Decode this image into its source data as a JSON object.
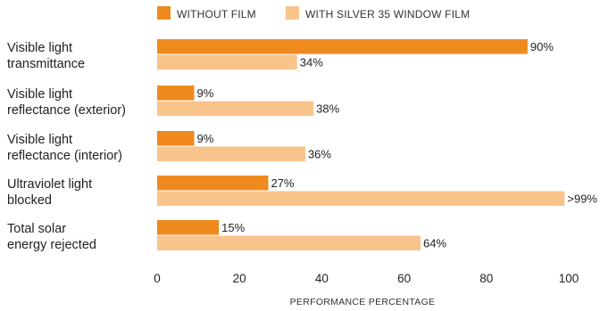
{
  "chart_data": {
    "type": "bar",
    "orientation": "horizontal",
    "title": "",
    "xlabel": "PERFORMANCE PERCENTAGE",
    "ylabel": "",
    "xlim": [
      0,
      100
    ],
    "ticks": [
      0,
      20,
      40,
      60,
      80,
      100
    ],
    "categories": [
      [
        "Visible light",
        "transmittance"
      ],
      [
        "Visible light",
        "reflectance (exterior)"
      ],
      [
        "Visible light",
        "reflectance (interior)"
      ],
      [
        "Ultraviolet light",
        "blocked"
      ],
      [
        "Total solar",
        "energy rejected"
      ]
    ],
    "series": [
      {
        "name": "WITHOUT FILM",
        "color": "#EE8A1E",
        "values": [
          90,
          9,
          9,
          27,
          15
        ],
        "labels": [
          "90%",
          "9%",
          "9%",
          "27%",
          "15%"
        ]
      },
      {
        "name": "WITH SILVER 35 WINDOW FILM",
        "color": "#F9C48C",
        "values": [
          34,
          38,
          36,
          99,
          64
        ],
        "labels": [
          "34%",
          "38%",
          "36%",
          ">99%",
          "64%"
        ]
      }
    ],
    "legend_position": "top",
    "grid": false
  }
}
